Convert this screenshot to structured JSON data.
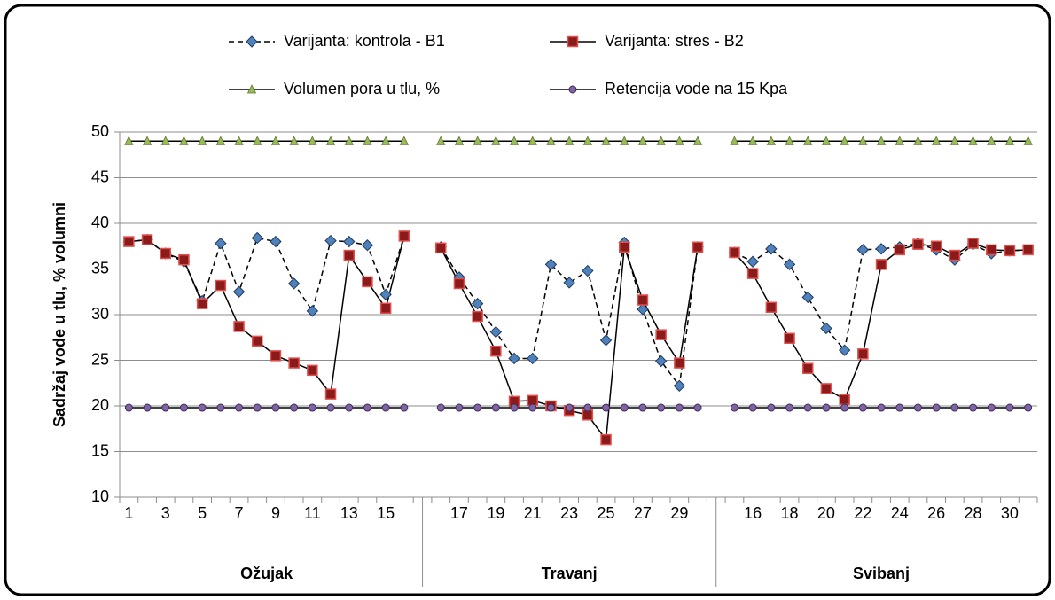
{
  "chart_data": {
    "type": "line",
    "y_label": "Sadržaj vode u tlu, % volumni",
    "categories": [
      "1",
      null,
      "3",
      null,
      "5",
      null,
      "7",
      null,
      "9",
      null,
      "11",
      null,
      "13",
      null,
      "15",
      null,
      null,
      null,
      "17",
      null,
      "19",
      null,
      "21",
      null,
      "23",
      null,
      "25",
      null,
      "27",
      null,
      "29",
      null,
      null,
      null,
      "16",
      null,
      "18",
      null,
      "20",
      null,
      "22",
      null,
      "24",
      null,
      "26",
      null,
      "28",
      null,
      "30",
      null
    ],
    "groups": [
      "Ožujak",
      "Travanj",
      "Svibanj"
    ],
    "series": [
      {
        "name": "Varijanta: kontrola - B1",
        "color": "#4f81bd",
        "line_color": "#000000",
        "line_style": "dashed",
        "marker": "diamond",
        "values": [
          38,
          38.2,
          36.7,
          35.8,
          31.5,
          37.8,
          32.5,
          38.4,
          38,
          33.4,
          30.4,
          38.1,
          38,
          37.6,
          32.2,
          38.6,
          null,
          37.4,
          34.1,
          31.2,
          28.1,
          25.2,
          25.2,
          35.5,
          33.5,
          34.8,
          27.2,
          37.9,
          30.6,
          24.9,
          22.2,
          37.4,
          null,
          36.8,
          35.8,
          37.2,
          35.5,
          31.9,
          28.5,
          26.1,
          37.1,
          37.2,
          37.4,
          37.8,
          37.1,
          36,
          37.7,
          36.7,
          37,
          37.1
        ]
      },
      {
        "name": "Varijanta: stres - B2",
        "color": "#8b1a1a",
        "line_color": "#000000",
        "line_style": "solid",
        "marker": "square",
        "values": [
          38,
          38.2,
          36.7,
          36,
          31.2,
          33.2,
          28.7,
          27.1,
          25.5,
          24.7,
          23.9,
          21.3,
          36.5,
          33.6,
          30.7,
          38.6,
          null,
          37.3,
          33.4,
          29.8,
          26,
          20.5,
          20.6,
          20,
          19.5,
          19,
          16.3,
          37.4,
          31.6,
          27.8,
          24.7,
          37.4,
          null,
          36.8,
          34.5,
          30.8,
          27.4,
          24.1,
          21.9,
          20.7,
          25.7,
          35.5,
          37.1,
          37.7,
          37.5,
          36.5,
          37.8,
          37.1,
          37,
          37.1
        ]
      },
      {
        "name": "Volumen pora u tlu, %",
        "color": "#9bbb59",
        "line_color": "#000000",
        "line_style": "solid",
        "marker": "triangle",
        "values": [
          49,
          49,
          49,
          49,
          49,
          49,
          49,
          49,
          49,
          49,
          49,
          49,
          49,
          49,
          49,
          49,
          null,
          49,
          49,
          49,
          49,
          49,
          49,
          49,
          49,
          49,
          49,
          49,
          49,
          49,
          49,
          49,
          null,
          49,
          49,
          49,
          49,
          49,
          49,
          49,
          49,
          49,
          49,
          49,
          49,
          49,
          49,
          49,
          49,
          49
        ]
      },
      {
        "name": "Retencija vode na 15 Kpa",
        "color": "#8064a2",
        "line_color": "#000000",
        "line_style": "solid",
        "marker": "circle",
        "values": [
          19.8,
          19.8,
          19.8,
          19.8,
          19.8,
          19.8,
          19.8,
          19.8,
          19.8,
          19.8,
          19.8,
          19.8,
          19.8,
          19.8,
          19.8,
          19.8,
          null,
          19.8,
          19.8,
          19.8,
          19.8,
          19.8,
          19.8,
          19.8,
          19.8,
          19.8,
          19.8,
          19.8,
          19.8,
          19.8,
          19.8,
          19.8,
          null,
          19.8,
          19.8,
          19.8,
          19.8,
          19.8,
          19.8,
          19.8,
          19.8,
          19.8,
          19.8,
          19.8,
          19.8,
          19.8,
          19.8,
          19.8,
          19.8,
          19.8
        ]
      }
    ],
    "ylim": [
      10,
      50
    ],
    "yticks": [
      10,
      15,
      20,
      25,
      30,
      35,
      40,
      45,
      50
    ],
    "grid": true,
    "legend": "top"
  }
}
